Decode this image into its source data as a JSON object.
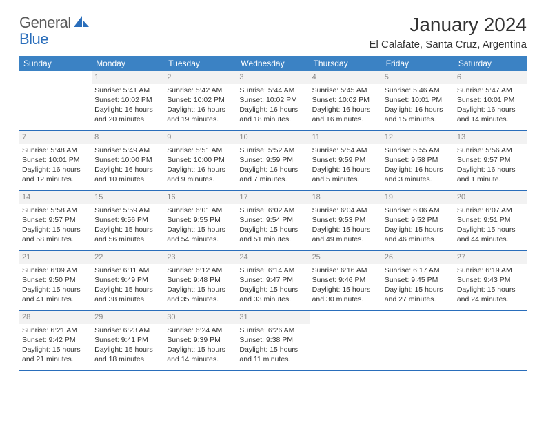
{
  "brand": {
    "general": "General",
    "blue": "Blue"
  },
  "title": "January 2024",
  "location": "El Calafate, Santa Cruz, Argentina",
  "colors": {
    "header_bg": "#3b82c4",
    "header_text": "#ffffff",
    "divider": "#2a6ebb",
    "daynum_bg": "#f2f2f2",
    "daynum_text": "#888888",
    "body_text": "#333333",
    "logo_gray": "#5a5a5a",
    "logo_blue": "#2a6ebb"
  },
  "weekdays": [
    "Sunday",
    "Monday",
    "Tuesday",
    "Wednesday",
    "Thursday",
    "Friday",
    "Saturday"
  ],
  "weeks": [
    [
      {
        "n": "",
        "sunrise": "",
        "sunset": "",
        "daylight": ""
      },
      {
        "n": "1",
        "sunrise": "Sunrise: 5:41 AM",
        "sunset": "Sunset: 10:02 PM",
        "daylight": "Daylight: 16 hours and 20 minutes."
      },
      {
        "n": "2",
        "sunrise": "Sunrise: 5:42 AM",
        "sunset": "Sunset: 10:02 PM",
        "daylight": "Daylight: 16 hours and 19 minutes."
      },
      {
        "n": "3",
        "sunrise": "Sunrise: 5:44 AM",
        "sunset": "Sunset: 10:02 PM",
        "daylight": "Daylight: 16 hours and 18 minutes."
      },
      {
        "n": "4",
        "sunrise": "Sunrise: 5:45 AM",
        "sunset": "Sunset: 10:02 PM",
        "daylight": "Daylight: 16 hours and 16 minutes."
      },
      {
        "n": "5",
        "sunrise": "Sunrise: 5:46 AM",
        "sunset": "Sunset: 10:01 PM",
        "daylight": "Daylight: 16 hours and 15 minutes."
      },
      {
        "n": "6",
        "sunrise": "Sunrise: 5:47 AM",
        "sunset": "Sunset: 10:01 PM",
        "daylight": "Daylight: 16 hours and 14 minutes."
      }
    ],
    [
      {
        "n": "7",
        "sunrise": "Sunrise: 5:48 AM",
        "sunset": "Sunset: 10:01 PM",
        "daylight": "Daylight: 16 hours and 12 minutes."
      },
      {
        "n": "8",
        "sunrise": "Sunrise: 5:49 AM",
        "sunset": "Sunset: 10:00 PM",
        "daylight": "Daylight: 16 hours and 10 minutes."
      },
      {
        "n": "9",
        "sunrise": "Sunrise: 5:51 AM",
        "sunset": "Sunset: 10:00 PM",
        "daylight": "Daylight: 16 hours and 9 minutes."
      },
      {
        "n": "10",
        "sunrise": "Sunrise: 5:52 AM",
        "sunset": "Sunset: 9:59 PM",
        "daylight": "Daylight: 16 hours and 7 minutes."
      },
      {
        "n": "11",
        "sunrise": "Sunrise: 5:54 AM",
        "sunset": "Sunset: 9:59 PM",
        "daylight": "Daylight: 16 hours and 5 minutes."
      },
      {
        "n": "12",
        "sunrise": "Sunrise: 5:55 AM",
        "sunset": "Sunset: 9:58 PM",
        "daylight": "Daylight: 16 hours and 3 minutes."
      },
      {
        "n": "13",
        "sunrise": "Sunrise: 5:56 AM",
        "sunset": "Sunset: 9:57 PM",
        "daylight": "Daylight: 16 hours and 1 minute."
      }
    ],
    [
      {
        "n": "14",
        "sunrise": "Sunrise: 5:58 AM",
        "sunset": "Sunset: 9:57 PM",
        "daylight": "Daylight: 15 hours and 58 minutes."
      },
      {
        "n": "15",
        "sunrise": "Sunrise: 5:59 AM",
        "sunset": "Sunset: 9:56 PM",
        "daylight": "Daylight: 15 hours and 56 minutes."
      },
      {
        "n": "16",
        "sunrise": "Sunrise: 6:01 AM",
        "sunset": "Sunset: 9:55 PM",
        "daylight": "Daylight: 15 hours and 54 minutes."
      },
      {
        "n": "17",
        "sunrise": "Sunrise: 6:02 AM",
        "sunset": "Sunset: 9:54 PM",
        "daylight": "Daylight: 15 hours and 51 minutes."
      },
      {
        "n": "18",
        "sunrise": "Sunrise: 6:04 AM",
        "sunset": "Sunset: 9:53 PM",
        "daylight": "Daylight: 15 hours and 49 minutes."
      },
      {
        "n": "19",
        "sunrise": "Sunrise: 6:06 AM",
        "sunset": "Sunset: 9:52 PM",
        "daylight": "Daylight: 15 hours and 46 minutes."
      },
      {
        "n": "20",
        "sunrise": "Sunrise: 6:07 AM",
        "sunset": "Sunset: 9:51 PM",
        "daylight": "Daylight: 15 hours and 44 minutes."
      }
    ],
    [
      {
        "n": "21",
        "sunrise": "Sunrise: 6:09 AM",
        "sunset": "Sunset: 9:50 PM",
        "daylight": "Daylight: 15 hours and 41 minutes."
      },
      {
        "n": "22",
        "sunrise": "Sunrise: 6:11 AM",
        "sunset": "Sunset: 9:49 PM",
        "daylight": "Daylight: 15 hours and 38 minutes."
      },
      {
        "n": "23",
        "sunrise": "Sunrise: 6:12 AM",
        "sunset": "Sunset: 9:48 PM",
        "daylight": "Daylight: 15 hours and 35 minutes."
      },
      {
        "n": "24",
        "sunrise": "Sunrise: 6:14 AM",
        "sunset": "Sunset: 9:47 PM",
        "daylight": "Daylight: 15 hours and 33 minutes."
      },
      {
        "n": "25",
        "sunrise": "Sunrise: 6:16 AM",
        "sunset": "Sunset: 9:46 PM",
        "daylight": "Daylight: 15 hours and 30 minutes."
      },
      {
        "n": "26",
        "sunrise": "Sunrise: 6:17 AM",
        "sunset": "Sunset: 9:45 PM",
        "daylight": "Daylight: 15 hours and 27 minutes."
      },
      {
        "n": "27",
        "sunrise": "Sunrise: 6:19 AM",
        "sunset": "Sunset: 9:43 PM",
        "daylight": "Daylight: 15 hours and 24 minutes."
      }
    ],
    [
      {
        "n": "28",
        "sunrise": "Sunrise: 6:21 AM",
        "sunset": "Sunset: 9:42 PM",
        "daylight": "Daylight: 15 hours and 21 minutes."
      },
      {
        "n": "29",
        "sunrise": "Sunrise: 6:23 AM",
        "sunset": "Sunset: 9:41 PM",
        "daylight": "Daylight: 15 hours and 18 minutes."
      },
      {
        "n": "30",
        "sunrise": "Sunrise: 6:24 AM",
        "sunset": "Sunset: 9:39 PM",
        "daylight": "Daylight: 15 hours and 14 minutes."
      },
      {
        "n": "31",
        "sunrise": "Sunrise: 6:26 AM",
        "sunset": "Sunset: 9:38 PM",
        "daylight": "Daylight: 15 hours and 11 minutes."
      },
      {
        "n": "",
        "sunrise": "",
        "sunset": "",
        "daylight": ""
      },
      {
        "n": "",
        "sunrise": "",
        "sunset": "",
        "daylight": ""
      },
      {
        "n": "",
        "sunrise": "",
        "sunset": "",
        "daylight": ""
      }
    ]
  ]
}
